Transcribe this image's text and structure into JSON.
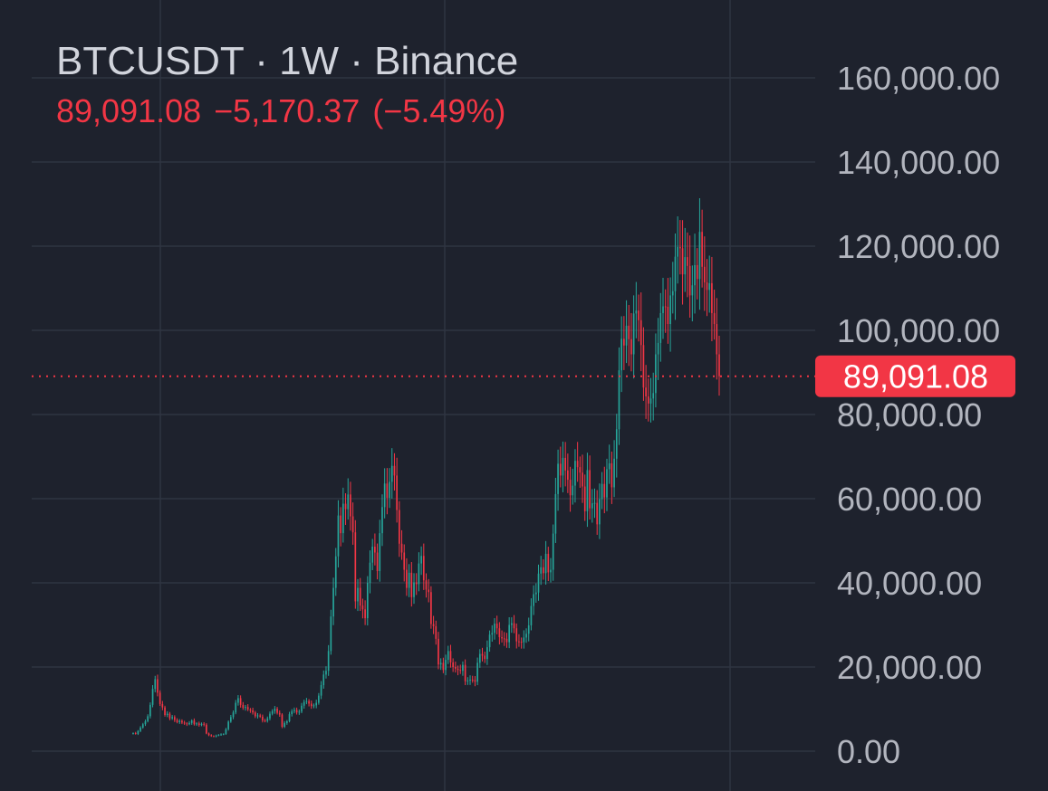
{
  "header": {
    "symbol": "BTCUSDT",
    "interval": "1W",
    "exchange": "Binance",
    "title": "BTCUSDT · 1W · Binance",
    "last": "89,091.08",
    "change": "−5,170.37",
    "change_pct": "(−5.49%)"
  },
  "colors": {
    "background": "#1e222d",
    "grid": "#2f3542",
    "up": "#26a69a",
    "down": "#f23645",
    "axis_text": "#b2b5be",
    "title_text": "#d1d4dc",
    "price_label_bg": "#f23645"
  },
  "chart_data": {
    "type": "candlestick",
    "title": "BTCUSDT · 1W · Binance",
    "interval": "1W",
    "ylim": [
      0,
      160000
    ],
    "y_ticks": [
      0,
      20000,
      40000,
      60000,
      80000,
      100000,
      120000,
      140000,
      160000
    ],
    "y_tick_labels": [
      "0.00",
      "20,000.00",
      "40,000.00",
      "60,000.00",
      "80,000.00",
      "100,000.00",
      "120,000.00",
      "140,000.00",
      "160,000.00"
    ],
    "grid": true,
    "last_price": 89091.08,
    "last_price_label": "89,091.08",
    "last_price_line": "dotted",
    "series": [
      {
        "name": "BTCUSDT",
        "close": [
          4300,
          4100,
          4800,
          5600,
          6400,
          7100,
          8300,
          11000,
          14800,
          17100,
          13900,
          11200,
          10400,
          8600,
          8900,
          7800,
          8100,
          7400,
          6900,
          7200,
          6800,
          6600,
          6400,
          6700,
          7300,
          6400,
          6600,
          6200,
          6500,
          6300,
          4200,
          3800,
          3600,
          3500,
          3700,
          3900,
          4000,
          4100,
          5200,
          7000,
          8100,
          9200,
          11500,
          12600,
          11000,
          10300,
          10500,
          9900,
          9700,
          9200,
          8300,
          8500,
          8200,
          7300,
          7200,
          7800,
          8900,
          9500,
          10100,
          9100,
          8700,
          5800,
          6700,
          7100,
          8800,
          9500,
          9800,
          9200,
          9400,
          10800,
          11700,
          11900,
          11300,
          10700,
          10900,
          11500,
          13200,
          15700,
          18200,
          19100,
          23800,
          32000,
          38800,
          46300,
          56000,
          51800,
          58800,
          57500,
          61000,
          55800,
          52000,
          35600,
          38800,
          34600,
          33700,
          31600,
          40000,
          44800,
          48600,
          47200,
          42800,
          51800,
          58000,
          63600,
          60200,
          64000,
          67800,
          65500,
          57300,
          49300,
          47200,
          43100,
          38800,
          42400,
          36600,
          40100,
          39700,
          44600,
          46400,
          40600,
          38400,
          37800,
          30200,
          29700,
          26700,
          20600,
          21000,
          19300,
          21700,
          23800,
          21100,
          20000,
          19600,
          19300,
          19100,
          20500,
          16600,
          16800,
          17000,
          16900,
          16500,
          21000,
          23100,
          22700,
          21900,
          24700,
          27700,
          28100,
          30300,
          29200,
          27100,
          26800,
          26700,
          25900,
          30000,
          30400,
          29200,
          26100,
          26000,
          25900,
          27000,
          27900,
          29900,
          34500,
          37300,
          37700,
          42200,
          43700,
          42300,
          46900,
          42500,
          43100,
          51700,
          61100,
          68300,
          65500,
          69700,
          66700,
          64500,
          60800,
          63100,
          69000,
          67500,
          66200,
          62900,
          57000,
          66800,
          57700,
          58900,
          59000,
          53900,
          59900,
          63500,
          60300,
          67000,
          68400,
          62700,
          69500,
          76500,
          90500,
          98000,
          96400,
          101100,
          97900,
          94300,
          104000,
          104700,
          102400,
          96500,
          86400,
          84300,
          82600,
          83800,
          85100,
          94300,
          97000,
          104100,
          105700,
          105600,
          101500,
          108300,
          109300,
          117500,
          119800,
          119500,
          113300,
          117400,
          115300,
          108300,
          110700,
          115500,
          112200,
          123400,
          115100,
          111400,
          109600,
          111200,
          104100,
          101500,
          94300,
          89091.08
        ]
      }
    ]
  }
}
